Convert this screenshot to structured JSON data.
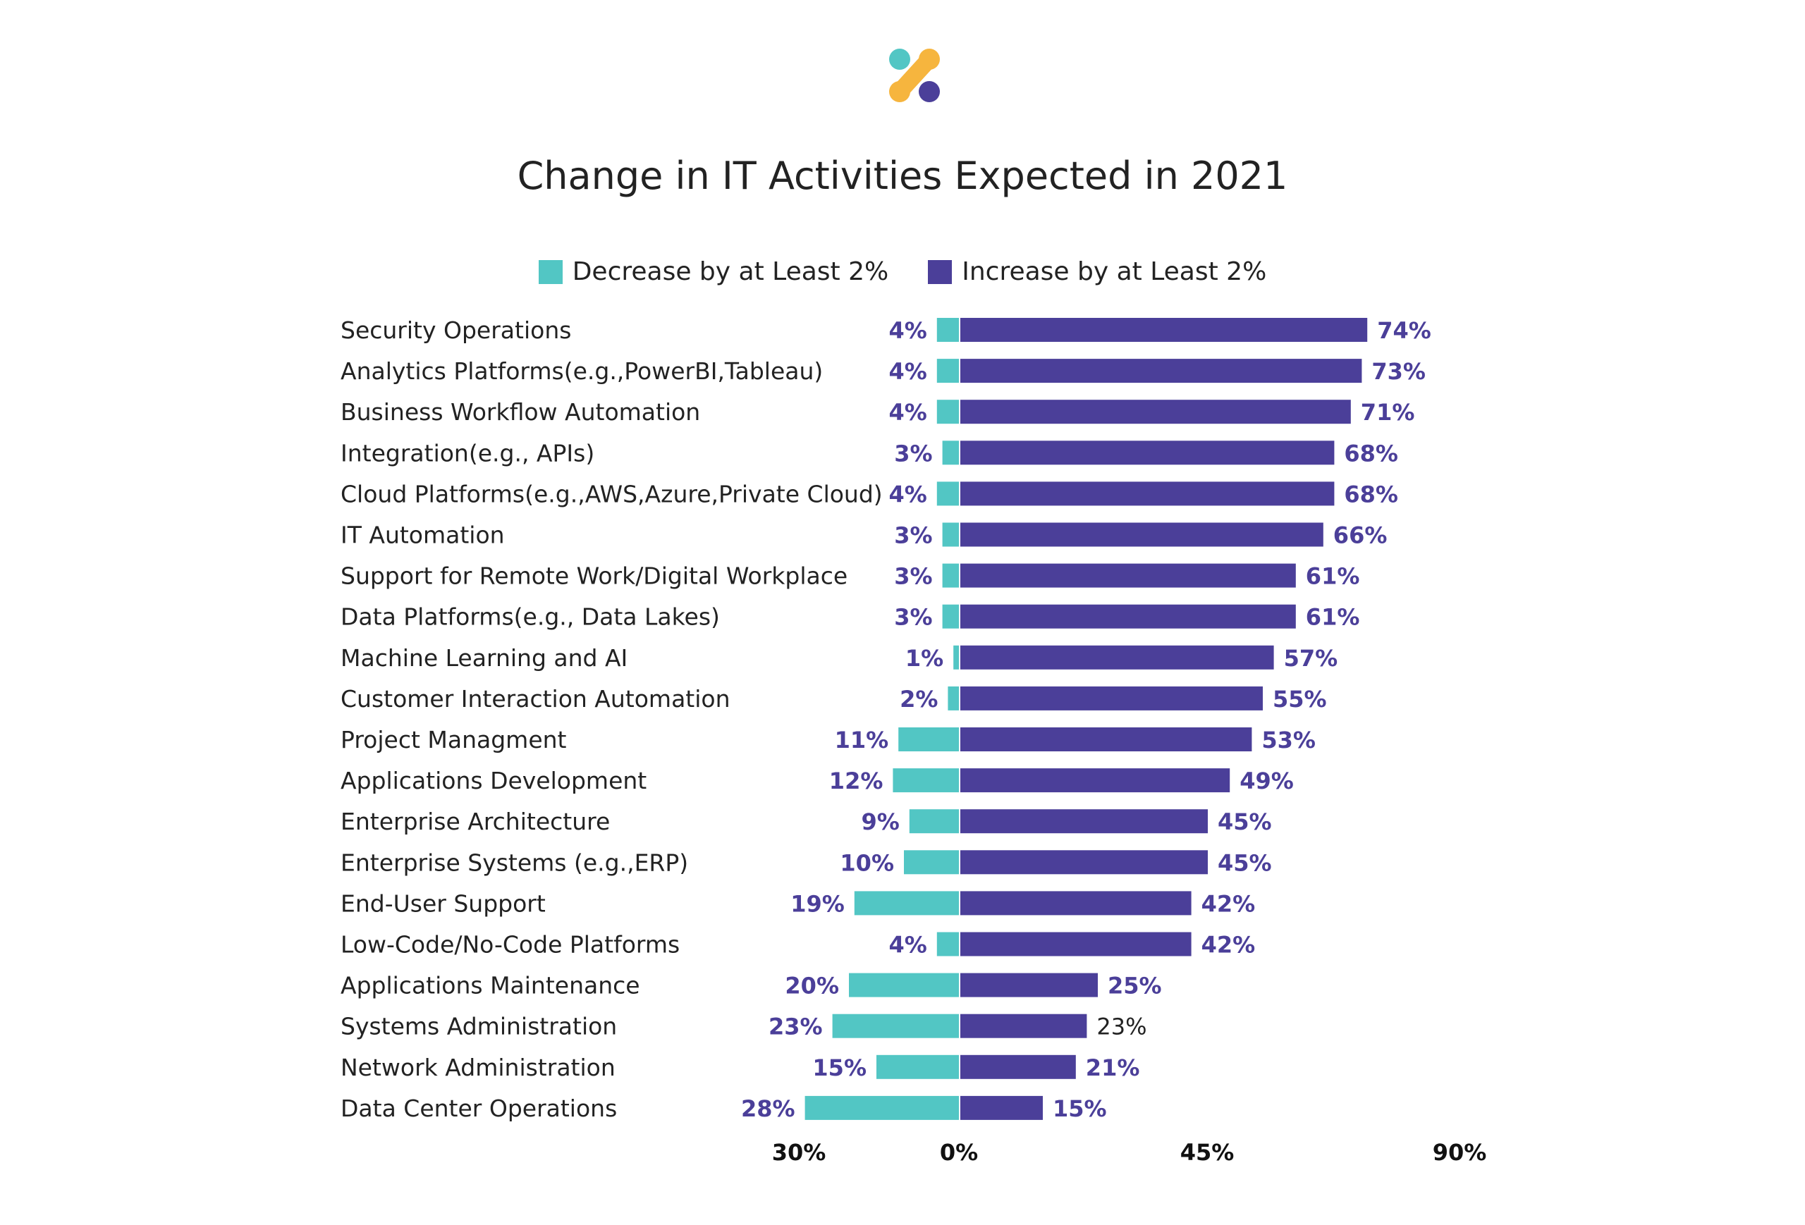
{
  "colors": {
    "decrease": "#52c6c4",
    "increase": "#4b3f99",
    "logo_teal": "#52c6c4",
    "logo_orange": "#f6b53e",
    "logo_purple": "#4b3f99"
  },
  "chart_data": {
    "type": "bar",
    "orientation": "horizontal-diverging",
    "title": "Change in IT Activities Expected in 2021",
    "legend": {
      "placement": "top-center"
    },
    "categories": [
      "Security Operations",
      "Analytics Platforms(e.g.,PowerBI,Tableau)",
      "Business Workflow Automation",
      "Integration(e.g., APIs)",
      "Cloud Platforms(e.g.,AWS,Azure,Private Cloud)",
      "IT Automation",
      "Support for Remote Work/Digital Workplace",
      "Data Platforms(e.g., Data Lakes)",
      "Machine Learning and AI",
      "Customer Interaction Automation",
      "Project Managment",
      "Applications Development",
      "Enterprise Architecture",
      "Enterprise Systems (e.g.,ERP)",
      "End-User Support",
      "Low-Code/No-Code Platforms",
      "Applications Maintenance",
      "Systems Administration",
      "Network Administration",
      "Data Center Operations"
    ],
    "series": [
      {
        "name": "Decrease by at Least 2%",
        "direction": "left",
        "values": [
          4,
          4,
          4,
          3,
          4,
          3,
          3,
          3,
          1,
          2,
          11,
          12,
          9,
          10,
          19,
          4,
          20,
          23,
          15,
          28
        ],
        "labels": [
          "4%",
          "4%",
          "4%",
          "3%",
          "4%",
          "3%",
          "3%",
          "3%",
          "1%",
          "2%",
          "11%",
          "12%",
          "9%",
          "10%",
          "19%",
          "4%",
          "20%",
          "23%",
          "15%",
          "28%"
        ]
      },
      {
        "name": "Increase by at Least 2%",
        "direction": "right",
        "values": [
          74,
          73,
          71,
          68,
          68,
          66,
          61,
          61,
          57,
          55,
          53,
          49,
          45,
          45,
          42,
          42,
          25,
          23,
          21,
          15
        ],
        "labels": [
          "74%",
          "73%",
          "71%",
          "68%",
          "68%",
          "66%",
          "61%",
          "61%",
          "57%",
          "55%",
          "53%",
          "49%",
          "45%",
          "45%",
          "42%",
          "42%",
          "25%",
          "23%",
          "21%",
          "15%"
        ]
      }
    ],
    "x_ticks": [
      "30%",
      "0%",
      "45%",
      "90%"
    ],
    "xlim": [
      -30,
      90
    ],
    "grid": false
  }
}
